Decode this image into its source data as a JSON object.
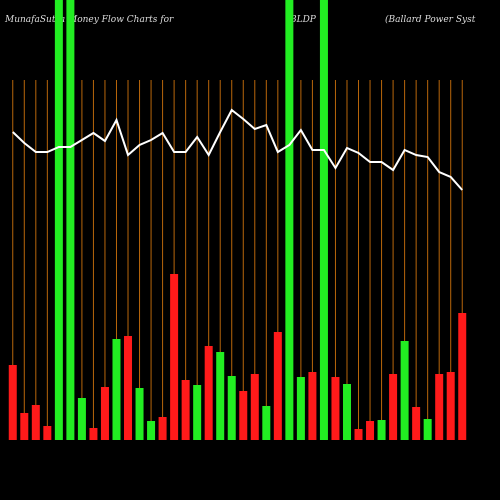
{
  "chart_data": {
    "type": "bar",
    "title": "MunafaSutra Money Flow Charts for",
    "ticker": "BLDP",
    "subtitle": "(Ballard Power Syst",
    "categories": [
      null,
      null,
      null,
      null,
      null,
      null,
      null,
      null,
      null,
      null,
      null,
      null,
      null,
      null,
      null,
      null,
      null,
      null,
      null,
      null,
      null,
      null,
      null,
      null,
      null,
      null,
      null,
      null,
      null,
      null,
      null,
      null,
      null,
      null,
      null,
      null,
      null,
      null,
      null,
      null
    ],
    "values": [
      75,
      27,
      35,
      14,
      440,
      440,
      42,
      12,
      53,
      101,
      104,
      52,
      19,
      23,
      166,
      60,
      55,
      94,
      88,
      64,
      49,
      66,
      34,
      108,
      440,
      63,
      68,
      440,
      63,
      56,
      11,
      19,
      20,
      66,
      99,
      33,
      21,
      66,
      68,
      127
    ],
    "bar_colors": [
      "#ff1a1a",
      "#ff1a1a",
      "#ff1a1a",
      "#ff1a1a",
      "#22ee22",
      "#22ee22",
      "#22ee22",
      "#ff1a1a",
      "#ff1a1a",
      "#22ee22",
      "#ff1a1a",
      "#22ee22",
      "#22ee22",
      "#ff1a1a",
      "#ff1a1a",
      "#ff1a1a",
      "#22ee22",
      "#ff1a1a",
      "#22ee22",
      "#22ee22",
      "#ff1a1a",
      "#ff1a1a",
      "#22ee22",
      "#ff1a1a",
      "#22ee22",
      "#22ee22",
      "#ff1a1a",
      "#22ee22",
      "#ff1a1a",
      "#22ee22",
      "#ff1a1a",
      "#ff1a1a",
      "#22ee22",
      "#ff1a1a",
      "#22ee22",
      "#ff1a1a",
      "#22ee22",
      "#ff1a1a",
      "#ff1a1a",
      "#ff1a1a"
    ],
    "line_values": [
      308,
      297,
      288,
      288,
      293,
      293,
      300,
      307,
      299,
      320,
      285,
      295,
      300,
      307,
      288,
      288,
      303,
      285,
      308,
      330,
      321,
      311,
      315,
      288,
      295,
      310,
      290,
      290,
      272,
      292,
      287,
      278,
      278,
      270,
      290,
      285,
      283,
      268,
      263,
      250
    ],
    "line_color": "#ffffff",
    "ylim": [
      0,
      440
    ]
  }
}
